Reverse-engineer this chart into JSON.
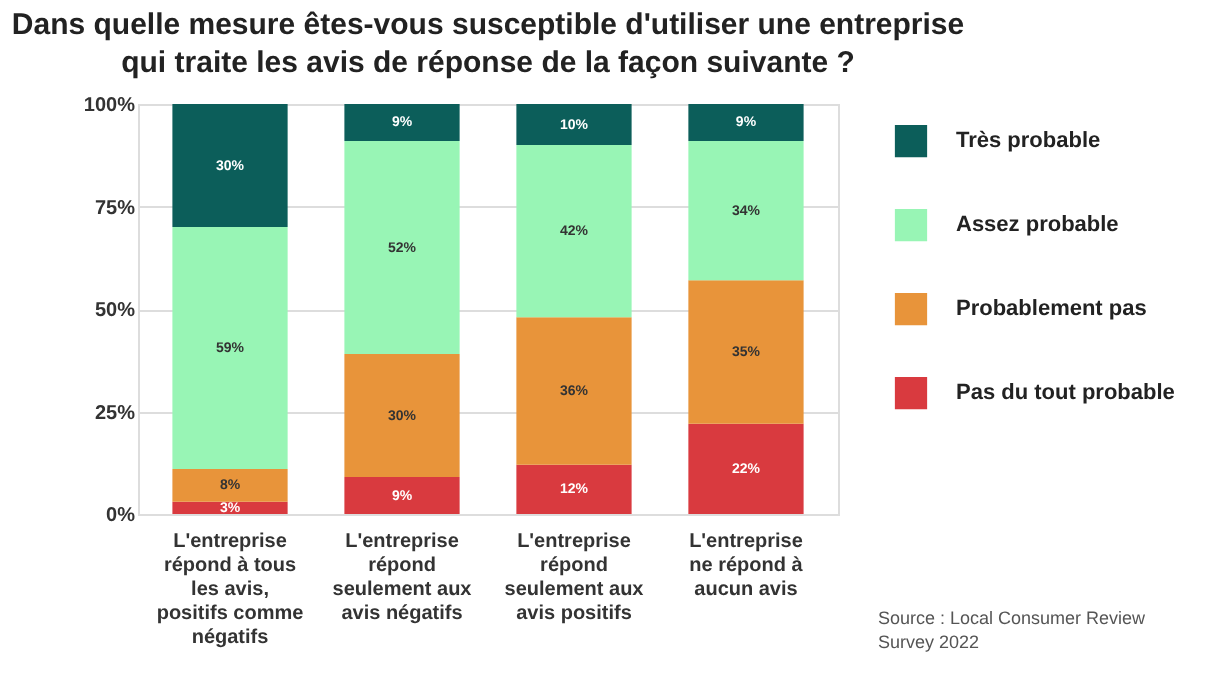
{
  "chart_data": {
    "type": "bar",
    "stacked": true,
    "title": "Dans quelle mesure êtes-vous susceptible d'utiliser une entreprise qui traite les avis de réponse de la façon suivante ?",
    "categories": [
      "L'entreprise répond à tous les avis, positifs comme négatifs",
      "L'entreprise répond seulement aux avis négatifs",
      "L'entreprise répond seulement aux avis positifs",
      "L'entreprise ne répond à aucun avis"
    ],
    "series": [
      {
        "name": "Pas du tout probable",
        "color": "#d93a3f",
        "values": [
          3,
          9,
          12,
          22
        ],
        "value_labels": [
          "3%",
          "9%",
          "12%",
          "22%"
        ]
      },
      {
        "name": "Probablement pas",
        "color": "#e8943a",
        "values": [
          8,
          30,
          36,
          35
        ],
        "value_labels": [
          "8%",
          "30%",
          "36%",
          "35%"
        ]
      },
      {
        "name": "Assez probable",
        "color": "#98f5b5",
        "values": [
          59,
          52,
          42,
          34
        ],
        "value_labels": [
          "59%",
          "52%",
          "42%",
          "34%"
        ]
      },
      {
        "name": "Très probable",
        "color": "#0c5e5a",
        "values": [
          30,
          9,
          10,
          9
        ],
        "value_labels": [
          "30%",
          "9%",
          "10%",
          "9%"
        ]
      }
    ],
    "ylim": [
      0,
      100
    ],
    "yticks": [
      {
        "value": 0,
        "label": "0%"
      },
      {
        "value": 25,
        "label": "25%"
      },
      {
        "value": 50,
        "label": "50%"
      },
      {
        "value": 75,
        "label": "75%"
      },
      {
        "value": 100,
        "label": "100%"
      }
    ],
    "grid": "y",
    "legend": "right",
    "annotations": [
      "Source : Local Consumer Review Survey 2022"
    ]
  }
}
